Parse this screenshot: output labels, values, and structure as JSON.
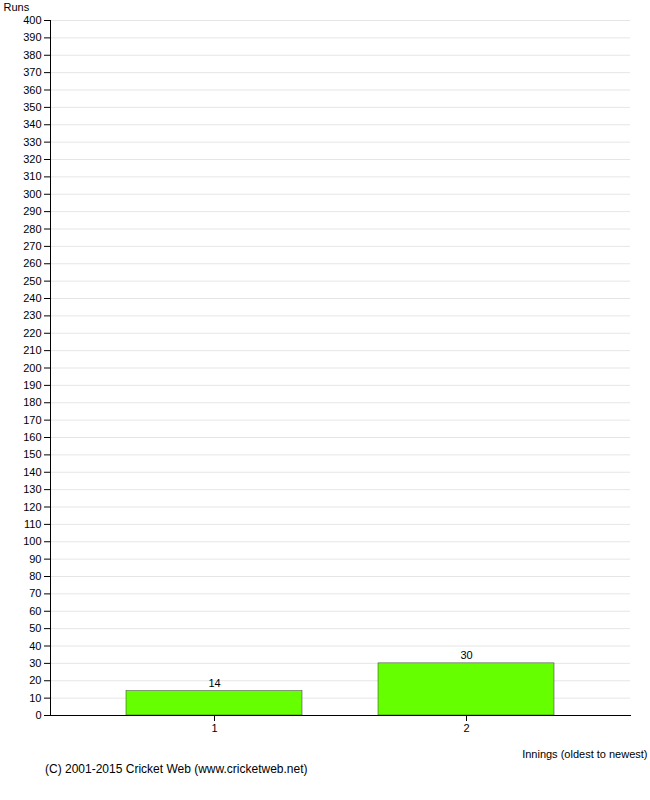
{
  "chart_data": {
    "type": "bar",
    "categories": [
      "1",
      "2"
    ],
    "values": [
      14,
      30
    ],
    "color": "#66ff00",
    "xlabel": "Innings (oldest to newest)",
    "ylabel": "Runs",
    "ylim": [
      0,
      400
    ],
    "yticks": [
      0,
      10,
      20,
      30,
      40,
      50,
      60,
      70,
      80,
      90,
      100,
      110,
      120,
      130,
      140,
      150,
      160,
      170,
      180,
      190,
      200,
      210,
      220,
      230,
      240,
      250,
      260,
      270,
      280,
      290,
      300,
      310,
      320,
      330,
      340,
      350,
      360,
      370,
      380,
      390,
      400
    ],
    "grid": true,
    "data_labels": true,
    "caption": "(C) 2001-2015 Cricket Web (www.cricketweb.net)"
  }
}
